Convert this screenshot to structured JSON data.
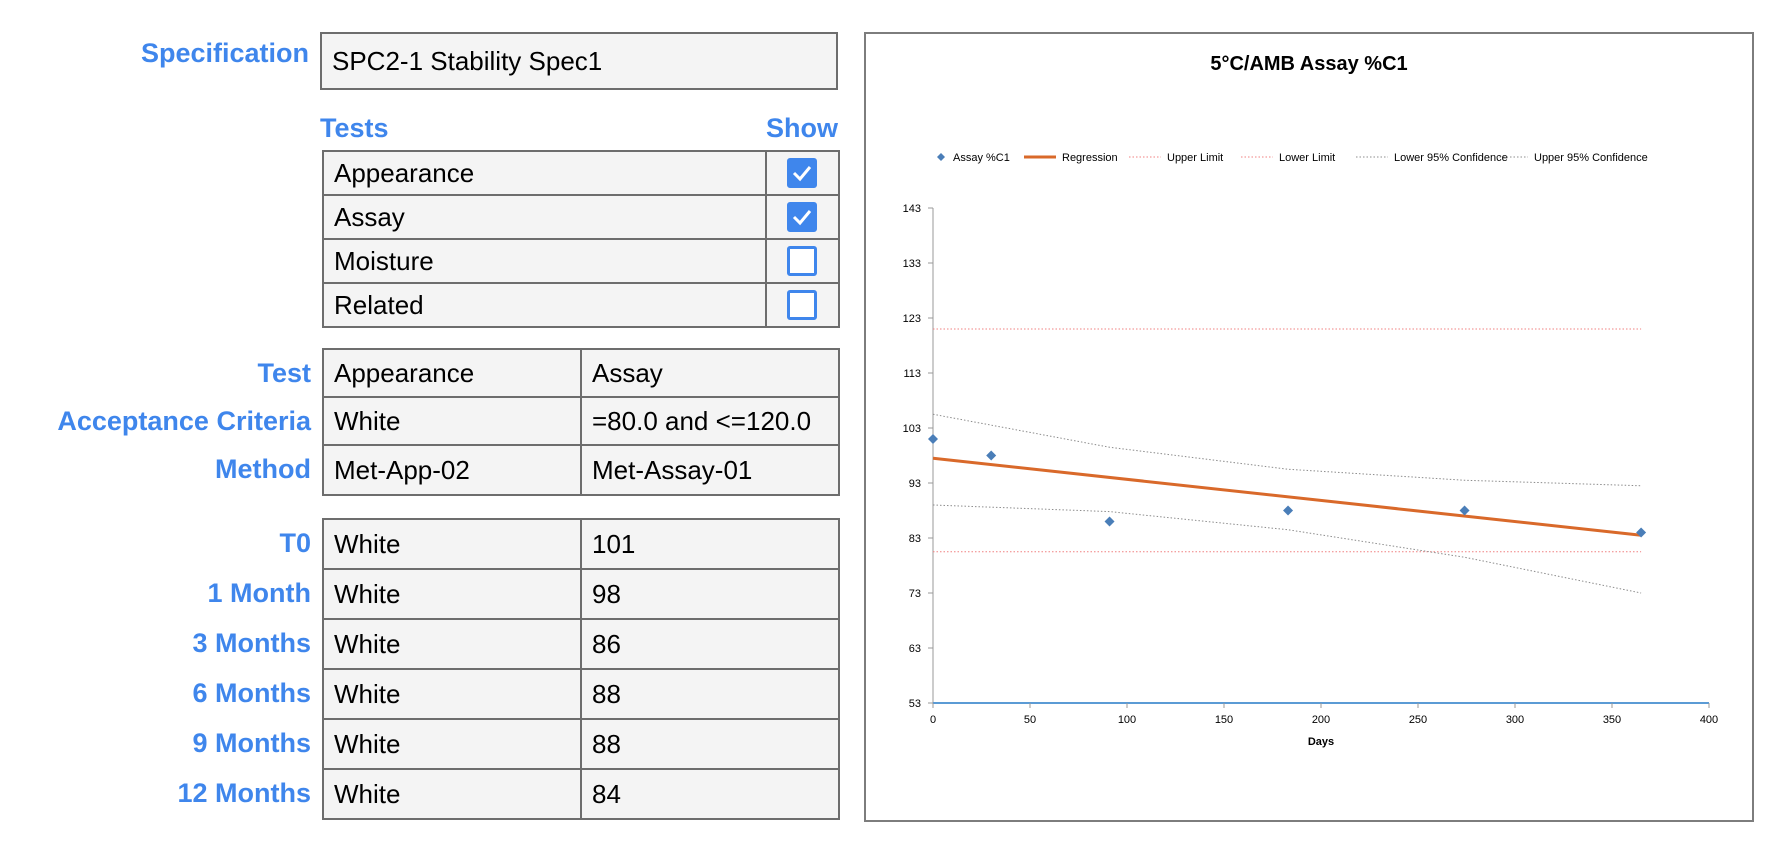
{
  "specification": {
    "label": "Specification",
    "value": "SPC2-1 Stability Spec1"
  },
  "tests_panel": {
    "tests_header": "Tests",
    "show_header": "Show",
    "items": [
      {
        "name": "Appearance",
        "checked": true
      },
      {
        "name": "Assay",
        "checked": true
      },
      {
        "name": "Moisture",
        "checked": false
      },
      {
        "name": "Related",
        "checked": false
      }
    ]
  },
  "details": {
    "row_labels": [
      "Test",
      "Acceptance Criteria",
      "Method"
    ],
    "columns": [
      [
        "Appearance",
        "White",
        "Met-App-02"
      ],
      [
        "Assay",
        "=80.0 and <=120.0",
        "Met-Assay-01"
      ]
    ]
  },
  "results": {
    "rows": [
      {
        "label": "T0",
        "appearance": "White",
        "assay": "101"
      },
      {
        "label": "1 Month",
        "appearance": "White",
        "assay": "98"
      },
      {
        "label": "3 Months",
        "appearance": "White",
        "assay": "86"
      },
      {
        "label": "6 Months",
        "appearance": "White",
        "assay": "88"
      },
      {
        "label": "9 Months",
        "appearance": "White",
        "assay": "88"
      },
      {
        "label": "12 Months",
        "appearance": "White",
        "assay": "84"
      }
    ]
  },
  "colors": {
    "accent": "#3f86ec",
    "cell_bg": "#f4f4f4",
    "border": "#6d6d6d",
    "points": "#4a7eb8",
    "regression": "#d9692a",
    "limits": "#f08080",
    "confidence": "#8c8c8c",
    "x_axis": "#5b9bd5"
  },
  "chart_data": {
    "type": "scatter",
    "title": "5°C/AMB  Assay %C1",
    "xlabel": "Days",
    "ylabel": "",
    "xlim": [
      0,
      400
    ],
    "ylim": [
      53,
      143
    ],
    "xticks": [
      0,
      50,
      100,
      150,
      200,
      250,
      300,
      350,
      400
    ],
    "yticks": [
      53,
      63,
      73,
      83,
      93,
      103,
      113,
      123,
      133,
      143
    ],
    "legend_position": "top",
    "grid": false,
    "series": [
      {
        "name": "Assay %C1",
        "kind": "points",
        "x": [
          0,
          30,
          91,
          183,
          274,
          365
        ],
        "y": [
          101,
          98,
          86,
          88,
          88,
          84
        ]
      },
      {
        "name": "Regression",
        "kind": "line",
        "x": [
          0,
          365
        ],
        "y": [
          97.5,
          83.5
        ]
      },
      {
        "name": "Upper Limit",
        "kind": "dotted",
        "x": [
          0,
          365
        ],
        "y": [
          121,
          121
        ]
      },
      {
        "name": "Lower Limit",
        "kind": "dotted",
        "x": [
          0,
          365
        ],
        "y": [
          80.5,
          80.5
        ]
      },
      {
        "name": "Lower 95% Confidence",
        "kind": "dotted",
        "x": [
          0,
          91,
          183,
          274,
          365
        ],
        "y": [
          89,
          87.8,
          84.5,
          79.5,
          73
        ]
      },
      {
        "name": "Upper 95% Confidence",
        "kind": "dotted",
        "x": [
          0,
          91,
          183,
          274,
          365
        ],
        "y": [
          105.5,
          99.5,
          95.5,
          93.5,
          92.5
        ]
      }
    ]
  }
}
